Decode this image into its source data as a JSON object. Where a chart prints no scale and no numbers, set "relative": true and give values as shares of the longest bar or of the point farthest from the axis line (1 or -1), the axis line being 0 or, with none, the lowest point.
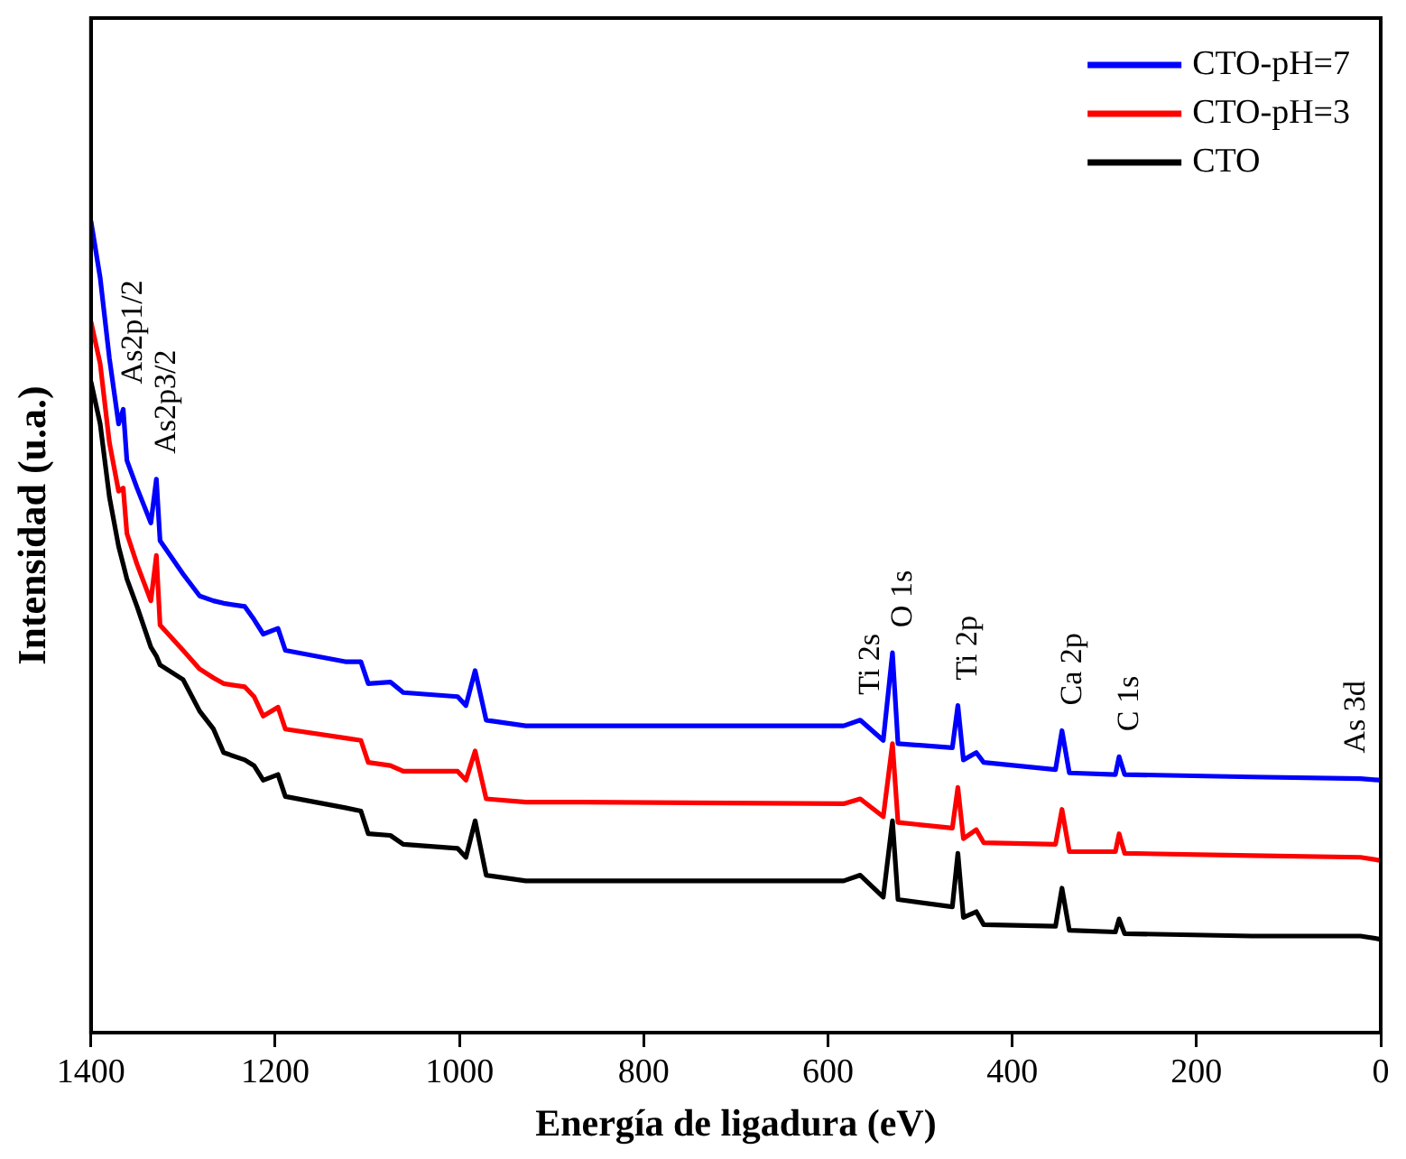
{
  "chart_data": {
    "type": "line",
    "relative": true,
    "xlabel": "Energía de ligadura (eV)",
    "ylabel": "Intensidad (u.a.)",
    "x": [
      1400,
      1390,
      1380,
      1370,
      1365,
      1361,
      1350,
      1335,
      1329,
      1325,
      1300,
      1282,
      1267,
      1256,
      1233,
      1223,
      1213,
      1197,
      1189,
      1124,
      1107,
      1099,
      1075,
      1061,
      1002,
      993,
      983,
      971,
      928,
      868,
      583,
      565,
      540,
      530,
      524,
      465,
      459,
      453,
      439,
      431,
      353,
      346,
      338,
      288,
      284,
      278,
      140,
      22,
      0
    ],
    "xlim": [
      1400,
      0
    ],
    "xticks": [
      0,
      200,
      400,
      600,
      800,
      1000,
      1200,
      1400
    ],
    "grid": false,
    "legend": "top right",
    "marker": "none",
    "line_style": "solid",
    "series": [
      {
        "name": "CTO-pH=7",
        "color": "#0000ff",
        "values": [
          1,
          0.93,
          0.831,
          0.75,
          0.768,
          0.705,
          0.671,
          0.628,
          0.682,
          0.606,
          0.565,
          0.538,
          0.532,
          0.529,
          0.525,
          0.509,
          0.491,
          0.498,
          0.471,
          0.457,
          0.457,
          0.43,
          0.432,
          0.419,
          0.414,
          0.403,
          0.446,
          0.385,
          0.378,
          0.378,
          0.378,
          0.385,
          0.36,
          0.468,
          0.356,
          0.351,
          0.403,
          0.336,
          0.345,
          0.333,
          0.324,
          0.372,
          0.32,
          0.318,
          0.34,
          0.318,
          0.315,
          0.313,
          0.311
        ]
      },
      {
        "name": "CTO-pH=3",
        "color": "#ff0000",
        "values": [
          0.876,
          0.824,
          0.727,
          0.667,
          0.671,
          0.615,
          0.577,
          0.532,
          0.588,
          0.502,
          0.471,
          0.448,
          0.437,
          0.43,
          0.426,
          0.414,
          0.39,
          0.401,
          0.374,
          0.363,
          0.36,
          0.333,
          0.329,
          0.322,
          0.322,
          0.311,
          0.347,
          0.288,
          0.284,
          0.284,
          0.282,
          0.288,
          0.266,
          0.356,
          0.259,
          0.252,
          0.302,
          0.239,
          0.25,
          0.234,
          0.232,
          0.275,
          0.223,
          0.223,
          0.245,
          0.221,
          0.218,
          0.216,
          0.212
        ]
      },
      {
        "name": "CTO",
        "color": "#000000",
        "values": [
          0.802,
          0.75,
          0.66,
          0.599,
          0.577,
          0.559,
          0.525,
          0.475,
          0.464,
          0.453,
          0.435,
          0.396,
          0.374,
          0.345,
          0.336,
          0.329,
          0.311,
          0.318,
          0.291,
          0.277,
          0.273,
          0.245,
          0.243,
          0.232,
          0.227,
          0.216,
          0.261,
          0.194,
          0.187,
          0.187,
          0.187,
          0.194,
          0.167,
          0.261,
          0.164,
          0.155,
          0.221,
          0.142,
          0.149,
          0.133,
          0.131,
          0.178,
          0.126,
          0.124,
          0.14,
          0.122,
          0.119,
          0.119,
          0.115
        ]
      }
    ],
    "annotations": [
      {
        "text": "As2p1/2",
        "x": 1365,
        "y": 0.768
      },
      {
        "text": "As2p3/2",
        "x": 1329,
        "y": 0.682
      },
      {
        "text": "Ti 2s",
        "x": 565,
        "y": 0.385
      },
      {
        "text": "O 1s",
        "x": 530,
        "y": 0.468
      },
      {
        "text": "Ti 2p",
        "x": 459,
        "y": 0.403
      },
      {
        "text": "Ca 2p",
        "x": 346,
        "y": 0.372
      },
      {
        "text": "C 1s",
        "x": 284,
        "y": 0.34
      },
      {
        "text": "As 3d",
        "x": 38,
        "y": 0.313
      }
    ]
  }
}
